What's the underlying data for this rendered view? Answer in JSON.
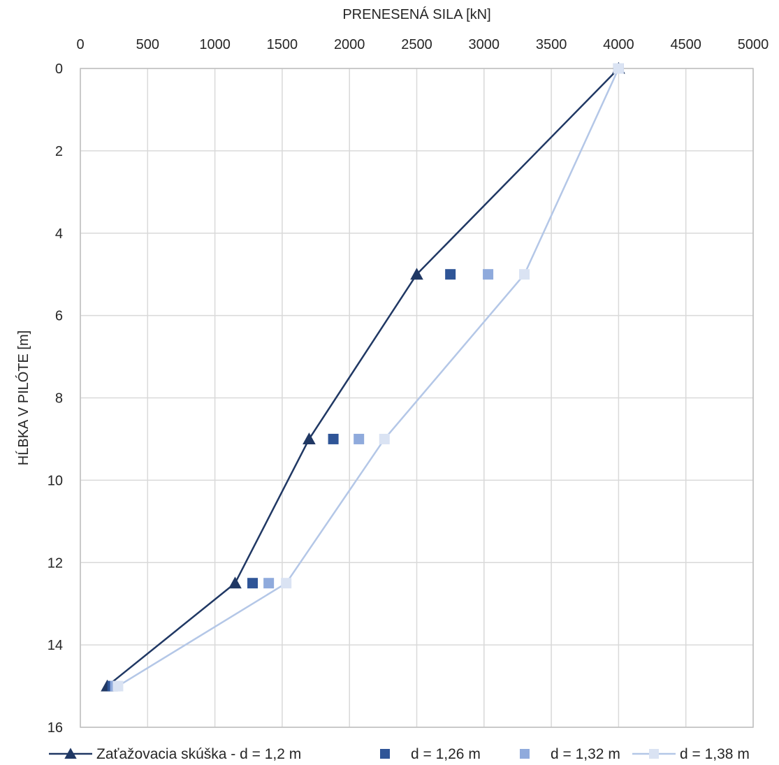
{
  "chart_data": {
    "type": "scatter",
    "xlabel": "PRENESENÁ SILA [kN]",
    "ylabel": "HĹBKA V PILÓTE [m]",
    "xlim": [
      0,
      5000
    ],
    "ylim": [
      0,
      16
    ],
    "x_axis_position": "top",
    "y_axis_reversed": true,
    "x_ticks": [
      0,
      500,
      1000,
      1500,
      2000,
      2500,
      3000,
      3500,
      4000,
      4500,
      5000
    ],
    "y_ticks": [
      0,
      2,
      4,
      6,
      8,
      10,
      12,
      14,
      16
    ],
    "grid": true,
    "legend_position": "bottom",
    "series": [
      {
        "name": "Zaťažovacia skúška - d = 1,2 m",
        "marker": "triangle",
        "line": true,
        "color": "#203864",
        "points": [
          [
            4000,
            0
          ],
          [
            2500,
            5
          ],
          [
            1700,
            9
          ],
          [
            1150,
            12.5
          ],
          [
            200,
            15
          ]
        ]
      },
      {
        "name": "d = 1,26 m",
        "marker": "square",
        "line": false,
        "color": "#2F5597",
        "points": [
          [
            4000,
            0
          ],
          [
            2750,
            5
          ],
          [
            1880,
            9
          ],
          [
            1280,
            12.5
          ],
          [
            240,
            15
          ]
        ]
      },
      {
        "name": "d = 1,32 m",
        "marker": "square",
        "line": false,
        "color": "#8FAADC",
        "points": [
          [
            4000,
            0
          ],
          [
            3030,
            5
          ],
          [
            2070,
            9
          ],
          [
            1400,
            12.5
          ],
          [
            260,
            15
          ]
        ]
      },
      {
        "name": "d = 1,38 m",
        "marker": "square",
        "line": true,
        "color": "#B4C7E7",
        "marker_color": "#DAE3F3",
        "points": [
          [
            4000,
            0
          ],
          [
            3300,
            5
          ],
          [
            2260,
            9
          ],
          [
            1530,
            12.5
          ],
          [
            280,
            15
          ]
        ]
      }
    ]
  }
}
